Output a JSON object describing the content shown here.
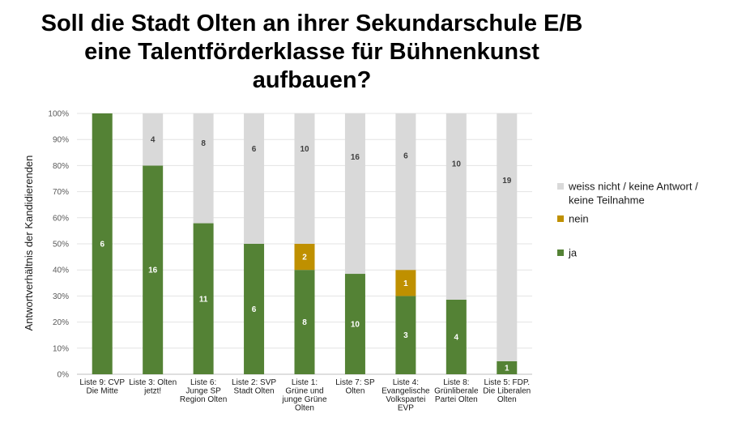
{
  "chart_data": {
    "type": "bar",
    "stacked": true,
    "title_lines": [
      "Soll die Stadt Olten an ihrer Sekundarschule E/B",
      "eine Talentförderklasse für Bühnenkunst",
      "aufbauen?"
    ],
    "ylabel": "Antwortverhältnis der Kandidierenden",
    "ylim": [
      0,
      100
    ],
    "y_ticks": [
      "0%",
      "10%",
      "20%",
      "30%",
      "40%",
      "50%",
      "60%",
      "70%",
      "80%",
      "90%",
      "100%"
    ],
    "grid": true,
    "legend_position": "right",
    "categories": [
      [
        "Liste 9: CVP",
        "Die Mitte"
      ],
      [
        "Liste 3: Olten",
        "jetzt!"
      ],
      [
        "Liste 6:",
        "Junge SP",
        "Region Olten"
      ],
      [
        "Liste 2: SVP",
        "Stadt Olten"
      ],
      [
        "Liste 1:",
        "Grüne und",
        "junge Grüne",
        "Olten"
      ],
      [
        "Liste 7: SP",
        "Olten"
      ],
      [
        "Liste 4:",
        "Evangelische",
        "Volkspartei",
        "EVP"
      ],
      [
        "Liste 8:",
        "Grünliberale",
        "Partei Olten"
      ],
      [
        "Liste 5: FDP.",
        "Die Liberalen",
        "Olten"
      ]
    ],
    "series": [
      {
        "name": "ja",
        "color": "#548235",
        "label_color": "#ffffff",
        "values": [
          100,
          80,
          57.9,
          50,
          40,
          38.5,
          30,
          28.6,
          5
        ],
        "labels": [
          "6",
          "16",
          "11",
          "6",
          "8",
          "10",
          "3",
          "4",
          "1"
        ]
      },
      {
        "name": "nein",
        "color": "#BF9000",
        "label_color": "#ffffff",
        "values": [
          0,
          0,
          0,
          0,
          10,
          0,
          10,
          0,
          0
        ],
        "labels": [
          "",
          "",
          "",
          "",
          "2",
          "",
          "1",
          "",
          ""
        ]
      },
      {
        "name_lines": [
          "weiss nicht / keine Antwort /",
          "keine Teilnahme"
        ],
        "color": "#D9D9D9",
        "label_color": "#404040",
        "values": [
          0,
          20,
          42.1,
          50,
          50,
          61.5,
          60,
          71.4,
          95
        ],
        "labels": [
          "",
          "4",
          "8",
          "6",
          "10",
          "16",
          "6",
          "10",
          "19"
        ]
      }
    ],
    "legend_order": [
      2,
      1,
      0
    ]
  }
}
